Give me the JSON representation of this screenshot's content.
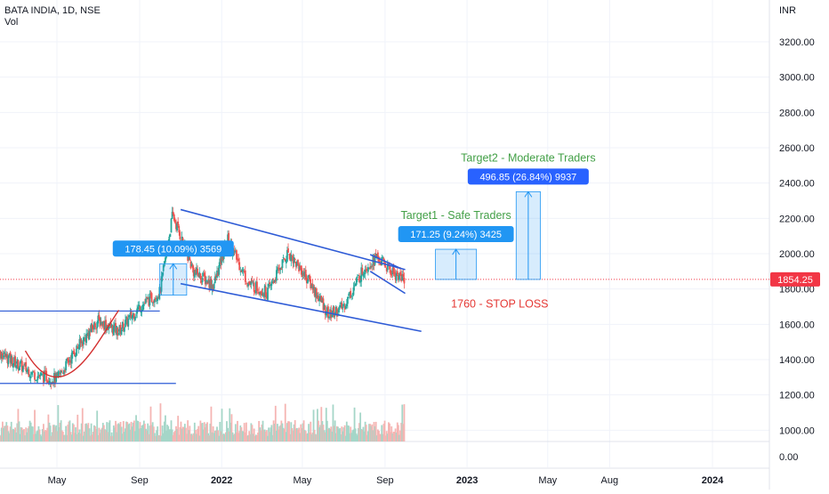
{
  "header": {
    "symbol": "BATA INDIA, 1D, NSE",
    "volume_label": "Vol",
    "currency": "INR"
  },
  "colors": {
    "up": "#26a69a",
    "down": "#ef5350",
    "channel": "#2e5bd6",
    "cup": "#d32f2f",
    "target_text": "#43a047",
    "stop_text": "#e53935",
    "price_tag": "#f23645",
    "label_bg": "#2196f3",
    "label_bg_dark": "#2962ff"
  },
  "chart_data": {
    "type": "candlestick",
    "title": "BATA INDIA, 1D, NSE",
    "y_axis": {
      "unit": "INR",
      "ticks": [
        3200,
        3000,
        2800,
        2600,
        2400,
        2200,
        2000,
        1800,
        1600,
        1400,
        1200,
        1000
      ],
      "ylim": [
        920,
        3300
      ]
    },
    "volume_axis_tick": "0.00",
    "x_axis_ticks": [
      {
        "label": "May",
        "date": "2021-05-01"
      },
      {
        "label": "Sep",
        "date": "2021-09-01"
      },
      {
        "label": "2022",
        "date": "2022-01-01"
      },
      {
        "label": "May",
        "date": "2022-05-01"
      },
      {
        "label": "Sep",
        "date": "2022-09-01"
      },
      {
        "label": "2023",
        "date": "2023-01-01"
      },
      {
        "label": "May",
        "date": "2023-05-01"
      },
      {
        "label": "Aug",
        "date": "2023-08-01"
      },
      {
        "label": "2024",
        "date": "2024-01-01"
      }
    ],
    "last_price": 1854.25,
    "last_price_label": "1854.25",
    "price_path": [
      [
        "2021-01-01",
        1540
      ],
      [
        "2021-02-01",
        1450
      ],
      [
        "2021-03-01",
        1380
      ],
      [
        "2021-04-01",
        1310
      ],
      [
        "2021-05-01",
        1290
      ],
      [
        "2021-06-01",
        1470
      ],
      [
        "2021-07-01",
        1620
      ],
      [
        "2021-08-01",
        1560
      ],
      [
        "2021-09-01",
        1700
      ],
      [
        "2021-10-01",
        1780
      ],
      [
        "2021-10-20",
        2220
      ],
      [
        "2021-11-20",
        1900
      ],
      [
        "2021-12-20",
        1820
      ],
      [
        "2022-01-10",
        2080
      ],
      [
        "2022-02-10",
        1830
      ],
      [
        "2022-03-10",
        1780
      ],
      [
        "2022-04-10",
        2010
      ],
      [
        "2022-05-10",
        1850
      ],
      [
        "2022-06-10",
        1650
      ],
      [
        "2022-07-01",
        1700
      ],
      [
        "2022-08-01",
        1920
      ],
      [
        "2022-08-20",
        1980
      ],
      [
        "2022-09-10",
        1900
      ],
      [
        "2022-09-30",
        1854
      ]
    ],
    "horizontal_lines": [
      {
        "from": "2021-01-01",
        "to": "2021-10-01",
        "price": 1675
      },
      {
        "from": "2021-01-01",
        "to": "2021-10-25",
        "price": 1265
      }
    ],
    "channel_upper": [
      [
        "2021-11-01",
        2250
      ],
      [
        "2022-10-01",
        1910
      ]
    ],
    "channel_lower": [
      [
        "2021-11-01",
        1830
      ],
      [
        "2022-10-25",
        1560
      ]
    ],
    "flag_upper": [
      [
        "2022-08-10",
        1995
      ],
      [
        "2022-09-25",
        1915
      ]
    ],
    "flag_lower": [
      [
        "2022-08-10",
        1900
      ],
      [
        "2022-10-01",
        1775
      ]
    ],
    "cup_curve": [
      [
        "2021-03-15",
        1450
      ],
      [
        "2021-05-10",
        1275
      ],
      [
        "2021-07-01",
        1560
      ],
      [
        "2021-08-01",
        1680
      ]
    ],
    "measures": [
      {
        "label": "178.45 (10.09%) 3569",
        "from": "2021-10-01",
        "to": "2021-11-10",
        "low": 1765,
        "high": 1943
      },
      {
        "label": "171.25 (9.24%) 3425",
        "from": "2022-11-15",
        "to": "2023-01-15",
        "low": 1854,
        "high": 2025,
        "caption": "Target1 - Safe Traders"
      },
      {
        "label": "496.85 (26.84%) 9937",
        "from": "2023-03-15",
        "to": "2023-04-20",
        "low": 1854,
        "high": 2351,
        "caption": "Target2 - Moderate Traders"
      }
    ],
    "stop_loss": {
      "label": "1760 - STOP LOSS",
      "price": 1760
    }
  }
}
